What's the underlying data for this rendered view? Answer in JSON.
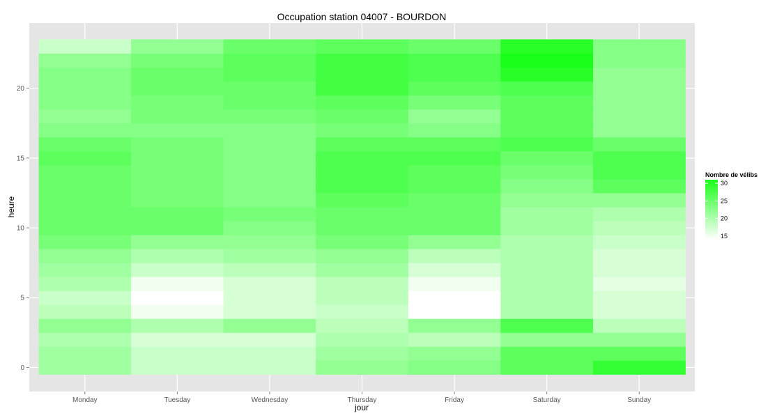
{
  "chart_data": {
    "type": "heatmap",
    "title": "Occupation station 04007 - BOURDON",
    "xlabel": "jour",
    "ylabel": "heure",
    "x_categories": [
      "Monday",
      "Tuesday",
      "Wednesday",
      "Thursday",
      "Friday",
      "Saturday",
      "Sunday"
    ],
    "y_values": [
      0,
      1,
      2,
      3,
      4,
      5,
      6,
      7,
      8,
      9,
      10,
      11,
      12,
      13,
      14,
      15,
      16,
      17,
      18,
      19,
      20,
      21,
      22,
      23
    ],
    "y_ticks": [
      0,
      5,
      10,
      15,
      20
    ],
    "ylim": [
      -0.5,
      23.5
    ],
    "values": [
      [
        21,
        18,
        18,
        22,
        23,
        26,
        29
      ],
      [
        21,
        18,
        18,
        21,
        22,
        26,
        26
      ],
      [
        20,
        17,
        17,
        20,
        19,
        22,
        22
      ],
      [
        22,
        20,
        22,
        19,
        22,
        27,
        19
      ],
      [
        19,
        15,
        17,
        18,
        14,
        20,
        17
      ],
      [
        18,
        14,
        17,
        19,
        14,
        20,
        17
      ],
      [
        20,
        15,
        17,
        19,
        15,
        20,
        16
      ],
      [
        21,
        18,
        19,
        21,
        17,
        20,
        17
      ],
      [
        22,
        20,
        21,
        22,
        19,
        20,
        17
      ],
      [
        24,
        22,
        22,
        24,
        22,
        20,
        18
      ],
      [
        25,
        25,
        23,
        25,
        25,
        21,
        19
      ],
      [
        25,
        25,
        24,
        25,
        25,
        21,
        20
      ],
      [
        25,
        24,
        23,
        26,
        25,
        22,
        22
      ],
      [
        25,
        24,
        23,
        27,
        26,
        23,
        26
      ],
      [
        25,
        24,
        23,
        27,
        26,
        24,
        27
      ],
      [
        26,
        24,
        23,
        27,
        27,
        25,
        27
      ],
      [
        25,
        24,
        23,
        26,
        26,
        27,
        25
      ],
      [
        23,
        23,
        23,
        24,
        23,
        26,
        22
      ],
      [
        22,
        24,
        24,
        25,
        22,
        26,
        22
      ],
      [
        23,
        24,
        25,
        26,
        24,
        26,
        22
      ],
      [
        23,
        25,
        25,
        28,
        26,
        27,
        22
      ],
      [
        23,
        25,
        26,
        28,
        27,
        30,
        22
      ],
      [
        22,
        24,
        26,
        28,
        27,
        31,
        23
      ],
      [
        18,
        22,
        25,
        26,
        25,
        30,
        23
      ]
    ],
    "color_scale": {
      "low": "#ffffff",
      "high": "#19ff19",
      "min": 14,
      "max": 31
    },
    "legend": {
      "title": "Nombre de vélibs",
      "labels": [
        "30",
        "25",
        "20",
        "15"
      ],
      "label_values": [
        30,
        25,
        20,
        15
      ],
      "position": "right"
    },
    "panel_background": "#e5e5e5",
    "grid_color": "#ffffff",
    "grid": true
  }
}
